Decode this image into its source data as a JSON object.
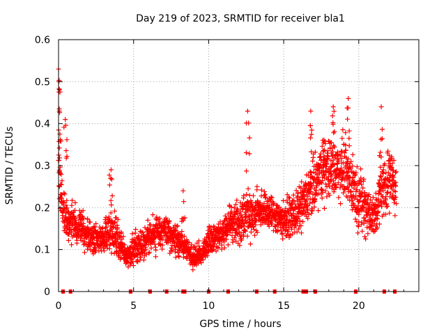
{
  "chart_data": {
    "type": "scatter",
    "title": "Day 219 of 2023, SRMTID for receiver bla1",
    "xlabel": "GPS time / hours",
    "ylabel": "SRMTID / TECUs",
    "xlim": [
      0,
      24
    ],
    "ylim": [
      0,
      0.6
    ],
    "xticks": [
      0,
      5,
      10,
      15,
      20
    ],
    "yticks": [
      0,
      0.1,
      0.2,
      0.3,
      0.4,
      0.5,
      0.6
    ],
    "xtick_labels": [
      "0",
      "5",
      "10",
      "15",
      "20"
    ],
    "ytick_labels": [
      "0",
      "0.1",
      "0.2",
      "0.3",
      "0.4",
      "0.5",
      "0.6"
    ],
    "grid": true,
    "marker": "+",
    "color": "#ff0000",
    "series": [
      {
        "name": "SRMTID",
        "trend_x": [
          0.0,
          0.1,
          0.3,
          0.6,
          1.0,
          1.5,
          2.0,
          2.5,
          3.0,
          3.5,
          4.0,
          4.5,
          5.0,
          5.5,
          6.0,
          6.5,
          7.0,
          7.5,
          8.0,
          8.5,
          9.0,
          9.5,
          10.0,
          10.5,
          11.0,
          11.5,
          12.0,
          12.5,
          13.0,
          13.5,
          14.0,
          14.5,
          15.0,
          15.5,
          16.0,
          16.5,
          17.0,
          17.5,
          18.0,
          18.5,
          19.0,
          19.5,
          20.0,
          20.5,
          21.0,
          21.5,
          22.0,
          22.5
        ],
        "trend_y": [
          0.3,
          0.26,
          0.2,
          0.17,
          0.16,
          0.15,
          0.13,
          0.13,
          0.12,
          0.15,
          0.12,
          0.08,
          0.1,
          0.11,
          0.13,
          0.14,
          0.15,
          0.13,
          0.12,
          0.1,
          0.08,
          0.09,
          0.12,
          0.13,
          0.14,
          0.17,
          0.16,
          0.19,
          0.18,
          0.2,
          0.19,
          0.18,
          0.17,
          0.18,
          0.19,
          0.22,
          0.25,
          0.28,
          0.3,
          0.29,
          0.3,
          0.26,
          0.22,
          0.2,
          0.17,
          0.24,
          0.27,
          0.25
        ],
        "spread_y": [
          0.1,
          0.08,
          0.06,
          0.05,
          0.05,
          0.05,
          0.04,
          0.04,
          0.04,
          0.06,
          0.05,
          0.03,
          0.04,
          0.04,
          0.04,
          0.05,
          0.05,
          0.04,
          0.04,
          0.03,
          0.03,
          0.03,
          0.04,
          0.04,
          0.04,
          0.05,
          0.06,
          0.07,
          0.06,
          0.05,
          0.05,
          0.05,
          0.05,
          0.05,
          0.06,
          0.07,
          0.08,
          0.08,
          0.08,
          0.08,
          0.08,
          0.08,
          0.08,
          0.08,
          0.06,
          0.08,
          0.08,
          0.07
        ],
        "points_per_hour": 110,
        "peaks": [
          [
            0.0,
            0.53
          ],
          [
            0.02,
            0.5
          ],
          [
            0.05,
            0.43
          ],
          [
            0.45,
            0.41
          ],
          [
            12.6,
            0.43
          ],
          [
            16.8,
            0.43
          ],
          [
            18.3,
            0.44
          ],
          [
            19.3,
            0.46
          ],
          [
            21.5,
            0.44
          ],
          [
            17.6,
            0.36
          ],
          [
            3.5,
            0.29
          ],
          [
            8.3,
            0.24
          ]
        ]
      }
    ],
    "baseline_marks_x": [
      0.3,
      0.8,
      4.8,
      6.1,
      7.2,
      8.3,
      8.4,
      10.0,
      11.3,
      13.2,
      14.4,
      16.3,
      16.5,
      17.1,
      19.8,
      21.7,
      22.4
    ]
  }
}
